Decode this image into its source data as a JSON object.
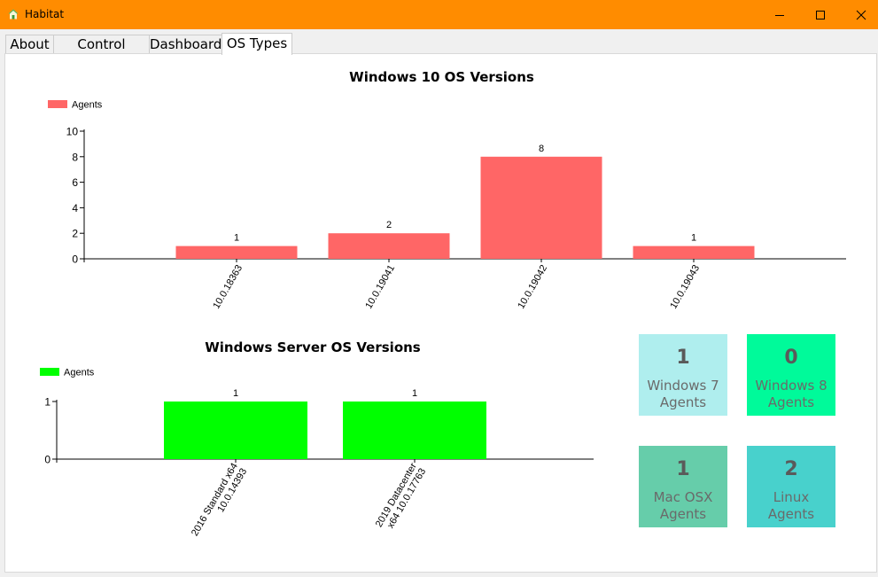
{
  "window": {
    "title": "Habitat",
    "accent_color": "#ff8c00",
    "icon": "home-icon",
    "controls": [
      "minimize-icon",
      "maximize-icon",
      "close-icon"
    ]
  },
  "tabs": [
    {
      "label": "About",
      "active": false
    },
    {
      "label": "Control Center",
      "active": false
    },
    {
      "label": "Dashboard",
      "active": false
    },
    {
      "label": "OS Types",
      "active": true
    }
  ],
  "chart_data": [
    {
      "type": "bar",
      "title": "Windows 10 OS Versions",
      "legend": {
        "position": "top-left"
      },
      "categories": [
        "10.0.18363",
        "10.0.19041",
        "10.0.19042",
        "10.0.19043"
      ],
      "series": [
        {
          "name": "Agents",
          "color": "#ff6666",
          "values": [
            1,
            2,
            8,
            1
          ]
        }
      ],
      "ylim": [
        0,
        10
      ],
      "yticks": [
        0,
        2,
        4,
        6,
        8,
        10
      ],
      "grid": false
    },
    {
      "type": "bar",
      "title": "Windows Server OS Versions",
      "legend": {
        "position": "top-left"
      },
      "categories": [
        "2016 Standard x64 10.0.14393",
        "2019 Datacenter x64 10.0.17763"
      ],
      "category_lines": [
        [
          "2016 Standard x64",
          "10.0.14393"
        ],
        [
          "2019 Datacenter",
          "x64 10.0.17763"
        ]
      ],
      "series": [
        {
          "name": "Agents",
          "color": "#00ff00",
          "values": [
            1,
            1
          ]
        }
      ],
      "ylim": [
        0,
        1
      ],
      "yticks": [
        0,
        1
      ],
      "grid": false
    }
  ],
  "cards": [
    {
      "count": "1",
      "line1": "Windows 7",
      "line2": "Agents",
      "color": "#afeeee"
    },
    {
      "count": "0",
      "line1": "Windows 8",
      "line2": "Agents",
      "color": "#00fa9a"
    },
    {
      "count": "1",
      "line1": "Mac OSX",
      "line2": "Agents",
      "color": "#66cdaa"
    },
    {
      "count": "2",
      "line1": "Linux",
      "line2": "Agents",
      "color": "#48d1cc"
    }
  ]
}
